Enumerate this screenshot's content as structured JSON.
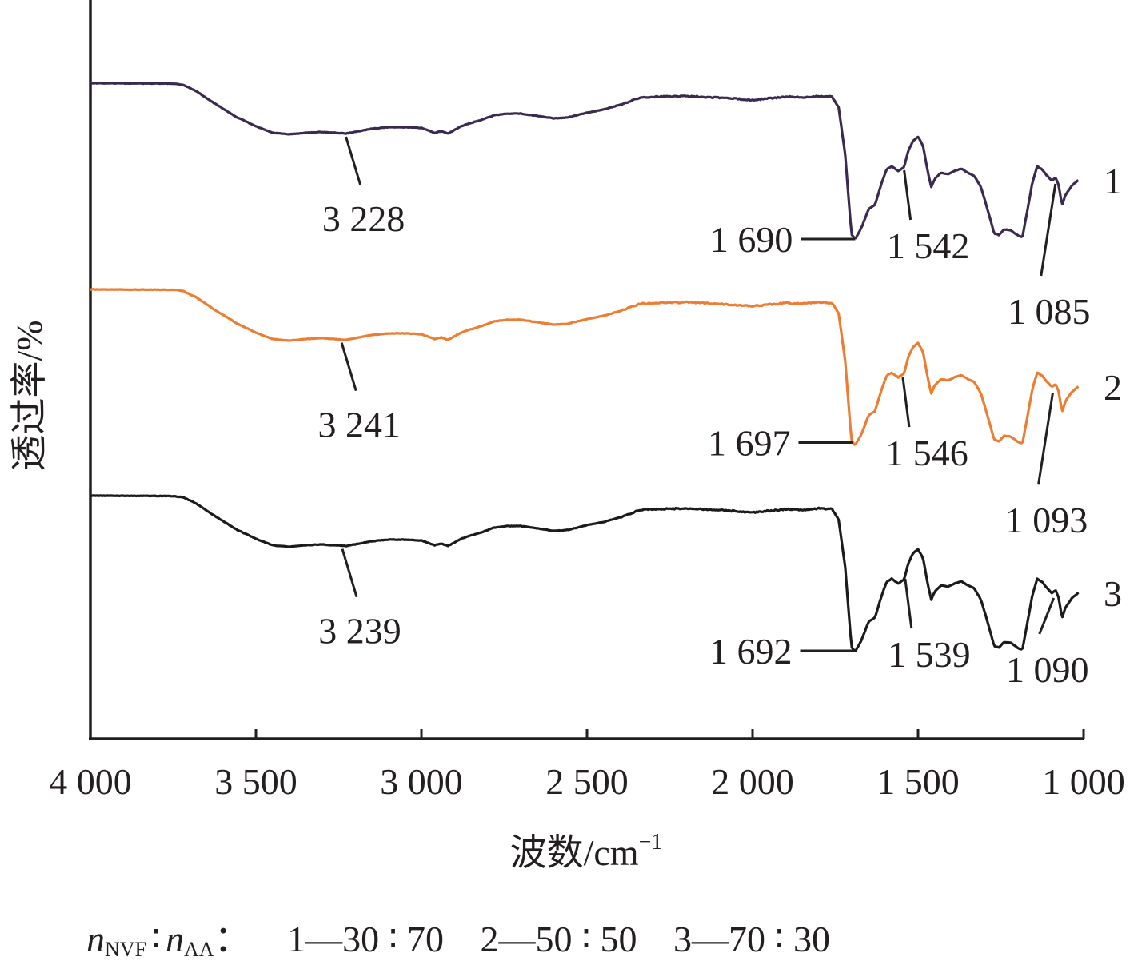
{
  "chart_data": {
    "type": "line",
    "xlabel": "波数/cm",
    "xlabel_sup": "−1",
    "ylabel": "透过率/%",
    "xlim": [
      4000,
      1000
    ],
    "x_reversed": true,
    "ticks": [
      {
        "value": 4000,
        "label": "4 000"
      },
      {
        "value": 3500,
        "label": "3 500"
      },
      {
        "value": 3000,
        "label": "3 000"
      },
      {
        "value": 2500,
        "label": "2 500"
      },
      {
        "value": 2000,
        "label": "2 000"
      },
      {
        "value": 1500,
        "label": "1 500"
      },
      {
        "value": 1000,
        "label": "1 000"
      }
    ],
    "y_ticks_shown": false,
    "grid": false,
    "series": [
      {
        "name": "1",
        "color": "#3b2a4f",
        "offset_rank": 1,
        "peaks": [
          {
            "x": 3228,
            "label": "3 228"
          },
          {
            "x": 1690,
            "label": "1 690"
          },
          {
            "x": 1542,
            "label": "1 542"
          },
          {
            "x": 1085,
            "label": "1 085"
          }
        ]
      },
      {
        "name": "2",
        "color": "#ec7d32",
        "offset_rank": 2,
        "peaks": [
          {
            "x": 3241,
            "label": "3 241"
          },
          {
            "x": 1697,
            "label": "1 697"
          },
          {
            "x": 1546,
            "label": "1 546"
          },
          {
            "x": 1093,
            "label": "1 093"
          }
        ]
      },
      {
        "name": "3",
        "color": "#1c1a1b",
        "offset_rank": 3,
        "peaks": [
          {
            "x": 3239,
            "label": "3 239"
          },
          {
            "x": 1692,
            "label": "1 692"
          },
          {
            "x": 1539,
            "label": "1 539"
          },
          {
            "x": 1090,
            "label": "1 090"
          }
        ]
      }
    ],
    "spectrum_shape": [
      [
        4000,
        0
      ],
      [
        3750,
        0.5
      ],
      [
        3720,
        2
      ],
      [
        3680,
        10
      ],
      [
        3630,
        24
      ],
      [
        3560,
        42
      ],
      [
        3500,
        54
      ],
      [
        3450,
        62
      ],
      [
        3400,
        64
      ],
      [
        3350,
        62
      ],
      [
        3300,
        61
      ],
      [
        3228,
        63
      ],
      [
        3150,
        57
      ],
      [
        3100,
        55
      ],
      [
        3050,
        55
      ],
      [
        3000,
        56
      ],
      [
        2960,
        62
      ],
      [
        2940,
        60
      ],
      [
        2920,
        63
      ],
      [
        2880,
        54
      ],
      [
        2860,
        51
      ],
      [
        2820,
        46
      ],
      [
        2780,
        40
      ],
      [
        2740,
        38
      ],
      [
        2700,
        38
      ],
      [
        2650,
        41
      ],
      [
        2600,
        44
      ],
      [
        2560,
        43
      ],
      [
        2500,
        37
      ],
      [
        2450,
        33
      ],
      [
        2400,
        27
      ],
      [
        2360,
        21
      ],
      [
        2340,
        18
      ],
      [
        2300,
        17
      ],
      [
        2200,
        16
      ],
      [
        2100,
        18
      ],
      [
        2000,
        21
      ],
      [
        1950,
        19
      ],
      [
        1900,
        17
      ],
      [
        1850,
        18
      ],
      [
        1800,
        16
      ],
      [
        1760,
        17
      ],
      [
        1740,
        30
      ],
      [
        1720,
        90
      ],
      [
        1705,
        170
      ],
      [
        1700,
        190
      ],
      [
        1690,
        195
      ],
      [
        1670,
        180
      ],
      [
        1650,
        158
      ],
      [
        1630,
        152
      ],
      [
        1610,
        125
      ],
      [
        1595,
        108
      ],
      [
        1580,
        104
      ],
      [
        1560,
        110
      ],
      [
        1542,
        105
      ],
      [
        1530,
        85
      ],
      [
        1515,
        72
      ],
      [
        1500,
        67
      ],
      [
        1485,
        78
      ],
      [
        1470,
        112
      ],
      [
        1460,
        130
      ],
      [
        1450,
        120
      ],
      [
        1430,
        112
      ],
      [
        1410,
        114
      ],
      [
        1390,
        110
      ],
      [
        1370,
        107
      ],
      [
        1350,
        112
      ],
      [
        1330,
        116
      ],
      [
        1310,
        130
      ],
      [
        1290,
        158
      ],
      [
        1270,
        188
      ],
      [
        1255,
        190
      ],
      [
        1240,
        183
      ],
      [
        1220,
        184
      ],
      [
        1200,
        190
      ],
      [
        1185,
        193
      ],
      [
        1170,
        160
      ],
      [
        1155,
        125
      ],
      [
        1140,
        104
      ],
      [
        1125,
        108
      ],
      [
        1110,
        116
      ],
      [
        1095,
        122
      ],
      [
        1085,
        118
      ],
      [
        1075,
        128
      ],
      [
        1065,
        153
      ],
      [
        1055,
        140
      ],
      [
        1035,
        128
      ],
      [
        1015,
        121
      ]
    ]
  },
  "footnote": {
    "n1": "n",
    "n1_sub": "NVF",
    "colon": "∶",
    "n2": "n",
    "n2_sub": "AA",
    "colon2": "：",
    "item1": "1—30 ∶ 70",
    "item2": "2—50 ∶ 50",
    "item3": "3—70 ∶ 30"
  }
}
